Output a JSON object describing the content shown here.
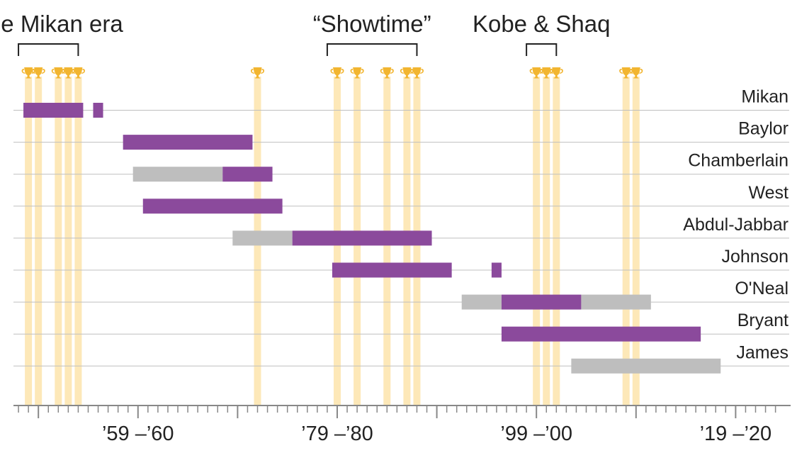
{
  "chart_data": {
    "type": "timeline",
    "title": "",
    "x_range_seasons": [
      1947,
      2025
    ],
    "eras": [
      {
        "label": "The Mikan era",
        "start": 1948,
        "end": 1954
      },
      {
        "label": "“Showtime”",
        "start": 1979,
        "end": 1988
      },
      {
        "label": "Kobe & Shaq",
        "start": 1999,
        "end": 2002
      }
    ],
    "championships": [
      1949,
      1950,
      1952,
      1953,
      1954,
      1972,
      1980,
      1982,
      1985,
      1987,
      1988,
      2000,
      2001,
      2002,
      2009,
      2010
    ],
    "players": [
      {
        "name": "Mikan",
        "spans": [
          {
            "start": 1948,
            "end": 1954,
            "team": "lakers"
          },
          {
            "start": 1955,
            "end": 1956,
            "team": "lakers"
          }
        ]
      },
      {
        "name": "Baylor",
        "spans": [
          {
            "start": 1958,
            "end": 1971,
            "team": "lakers"
          }
        ]
      },
      {
        "name": "Chamberlain",
        "spans": [
          {
            "start": 1959,
            "end": 1968,
            "team": "other"
          },
          {
            "start": 1968,
            "end": 1973,
            "team": "lakers"
          }
        ]
      },
      {
        "name": "West",
        "spans": [
          {
            "start": 1960,
            "end": 1974,
            "team": "lakers"
          }
        ]
      },
      {
        "name": "Abdul-Jabbar",
        "spans": [
          {
            "start": 1969,
            "end": 1975,
            "team": "other"
          },
          {
            "start": 1975,
            "end": 1989,
            "team": "lakers"
          }
        ]
      },
      {
        "name": "Johnson",
        "spans": [
          {
            "start": 1979,
            "end": 1991,
            "team": "lakers"
          },
          {
            "start": 1995,
            "end": 1996,
            "team": "lakers"
          }
        ]
      },
      {
        "name": "O'Neal",
        "spans": [
          {
            "start": 1992,
            "end": 1996,
            "team": "other"
          },
          {
            "start": 1996,
            "end": 2004,
            "team": "lakers"
          },
          {
            "start": 2004,
            "end": 2011,
            "team": "other"
          }
        ]
      },
      {
        "name": "Bryant",
        "spans": [
          {
            "start": 1996,
            "end": 2016,
            "team": "lakers"
          }
        ]
      },
      {
        "name": "James",
        "spans": [
          {
            "start": 2003,
            "end": 2018,
            "team": "other"
          }
        ]
      }
    ],
    "x_tick_labels": [
      {
        "label": "’59 –’60",
        "season": 1960
      },
      {
        "label": "’79 –’80",
        "season": 1980
      },
      {
        "label": "’99 –’00",
        "season": 2000
      },
      {
        "label": "’19 –’20",
        "season": 2020
      }
    ],
    "colors": {
      "lakers": "#8b4a9c",
      "other": "#bebebe",
      "championship": "#fde8b8",
      "trophy": "#f2b530",
      "grid": "#bfbfbf",
      "text": "#222222"
    }
  }
}
